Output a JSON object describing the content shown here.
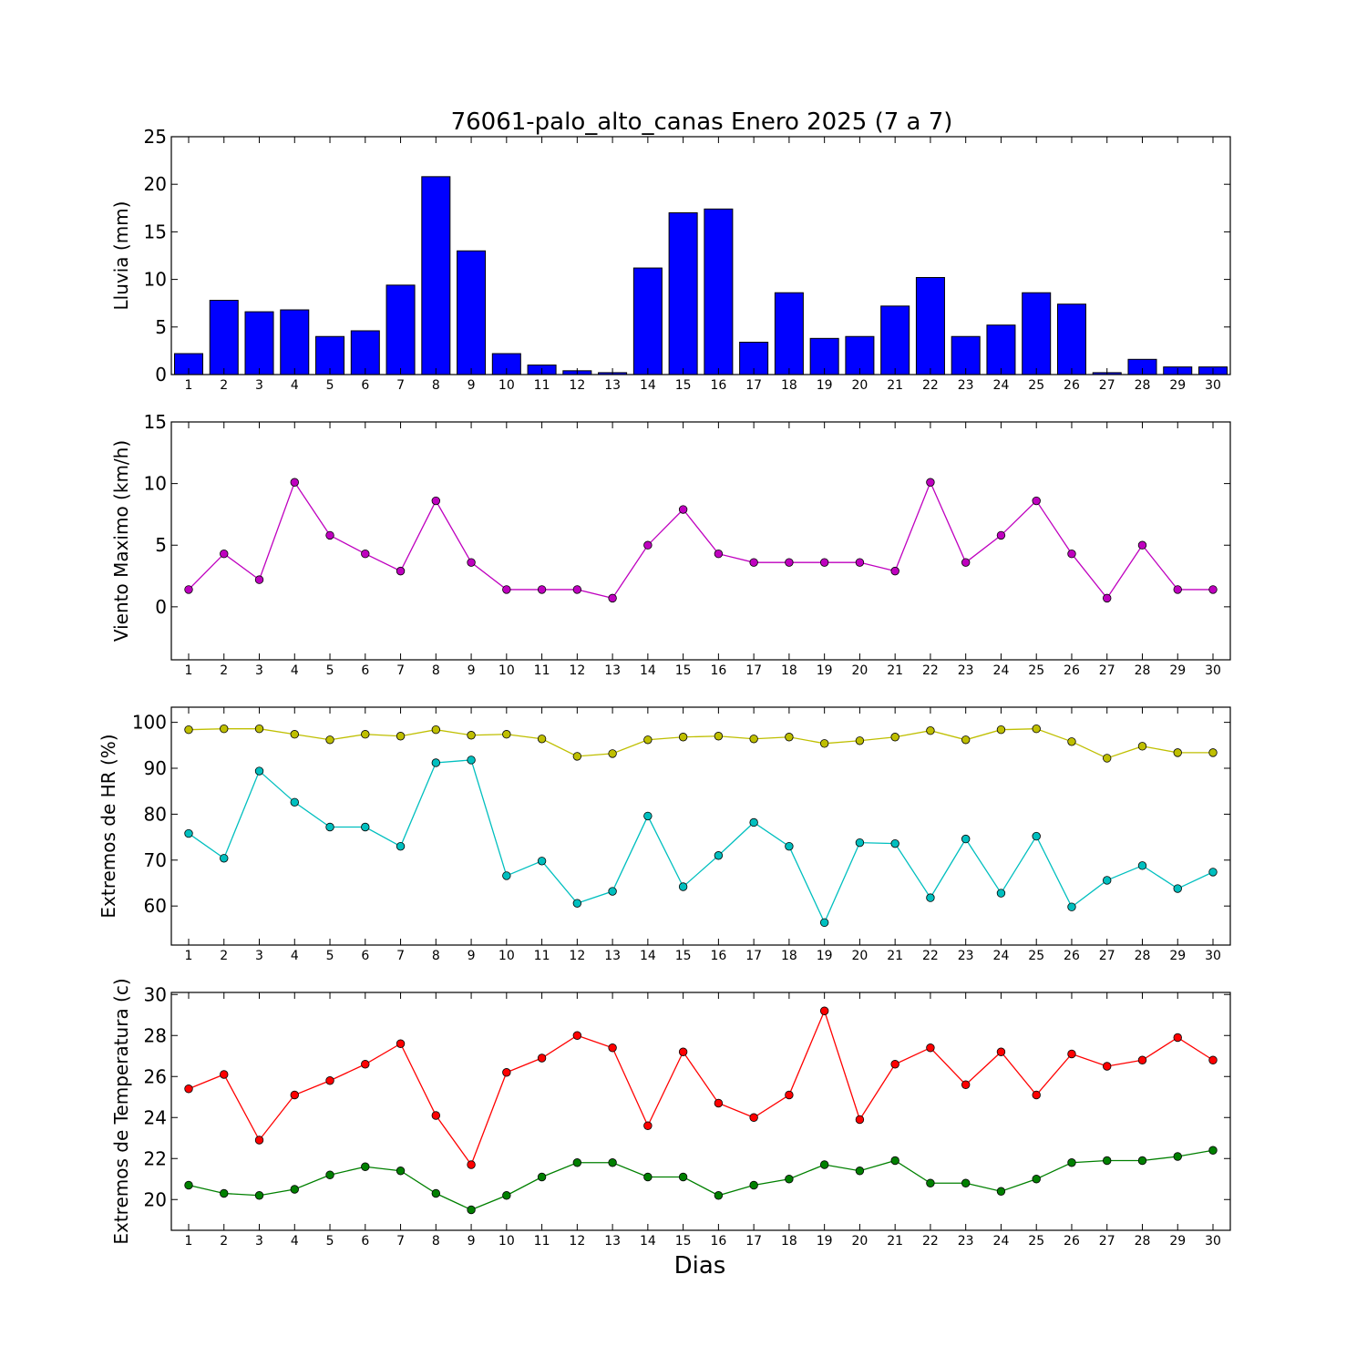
{
  "title": "76061-palo_alto_canas Enero 2025  (7 a 7)",
  "xlabel": "Dias",
  "chart_data": [
    {
      "type": "bar",
      "ylabel": "Lluvia (mm)",
      "ylim": [
        0,
        25
      ],
      "yticks": [
        0,
        5,
        10,
        15,
        20,
        25
      ],
      "categories": [
        1,
        2,
        3,
        4,
        5,
        6,
        7,
        8,
        9,
        10,
        11,
        12,
        13,
        14,
        15,
        16,
        17,
        18,
        19,
        20,
        21,
        22,
        23,
        24,
        25,
        26,
        27,
        28,
        29,
        30
      ],
      "series": [
        {
          "color": "#0000ff",
          "values": [
            2.2,
            7.8,
            6.6,
            6.8,
            4.0,
            4.6,
            9.4,
            20.8,
            13.0,
            2.2,
            1.0,
            0.4,
            0.2,
            11.2,
            17.0,
            17.4,
            3.4,
            8.6,
            3.8,
            4.0,
            7.2,
            10.2,
            4.0,
            5.2,
            8.6,
            7.4,
            0.2,
            1.6,
            0.8,
            0.8
          ]
        }
      ]
    },
    {
      "type": "line",
      "ylabel": "Viento Maximo (km/h)",
      "ylim": [
        -4.3,
        15
      ],
      "yticks": [
        0,
        5,
        10,
        15
      ],
      "categories": [
        1,
        2,
        3,
        4,
        5,
        6,
        7,
        8,
        9,
        10,
        11,
        12,
        13,
        14,
        15,
        16,
        17,
        18,
        19,
        20,
        21,
        22,
        23,
        24,
        25,
        26,
        27,
        28,
        29,
        30
      ],
      "series": [
        {
          "color": "#bf00bf",
          "values": [
            1.4,
            4.3,
            2.2,
            10.1,
            5.8,
            4.3,
            2.9,
            8.6,
            3.6,
            1.4,
            1.4,
            1.4,
            0.7,
            5.0,
            7.9,
            4.3,
            3.6,
            3.6,
            3.6,
            3.6,
            2.9,
            10.1,
            3.6,
            5.8,
            8.6,
            4.3,
            0.7,
            5.0,
            1.4,
            1.4
          ]
        }
      ]
    },
    {
      "type": "line",
      "ylabel": "Extremos de HR (%)",
      "ylim": [
        51.5,
        103.3
      ],
      "yticks": [
        60,
        70,
        80,
        90,
        100
      ],
      "categories": [
        1,
        2,
        3,
        4,
        5,
        6,
        7,
        8,
        9,
        10,
        11,
        12,
        13,
        14,
        15,
        16,
        17,
        18,
        19,
        20,
        21,
        22,
        23,
        24,
        25,
        26,
        27,
        28,
        29,
        30
      ],
      "series": [
        {
          "color": "#bfbf00",
          "values": [
            98.4,
            98.6,
            98.6,
            97.4,
            96.2,
            97.4,
            97.0,
            98.4,
            97.2,
            97.4,
            96.4,
            92.6,
            93.2,
            96.2,
            96.8,
            97.0,
            96.4,
            96.8,
            95.4,
            96.0,
            96.8,
            98.2,
            96.2,
            98.4,
            98.6,
            95.8,
            92.2,
            94.8,
            93.4,
            93.4
          ]
        },
        {
          "color": "#00bfbf",
          "values": [
            75.8,
            70.4,
            89.4,
            82.6,
            77.2,
            77.2,
            73.0,
            91.2,
            91.8,
            66.6,
            69.8,
            60.6,
            63.2,
            79.6,
            64.2,
            71.0,
            78.2,
            73.0,
            56.4,
            73.8,
            73.6,
            61.8,
            74.6,
            62.8,
            75.2,
            59.8,
            65.6,
            68.8,
            63.8,
            67.4
          ]
        }
      ]
    },
    {
      "type": "line",
      "ylabel": "Extremos de Temperatura (c)",
      "ylim": [
        18.5,
        30.1
      ],
      "yticks": [
        20,
        22,
        24,
        26,
        28,
        30
      ],
      "categories": [
        1,
        2,
        3,
        4,
        5,
        6,
        7,
        8,
        9,
        10,
        11,
        12,
        13,
        14,
        15,
        16,
        17,
        18,
        19,
        20,
        21,
        22,
        23,
        24,
        25,
        26,
        27,
        28,
        29,
        30
      ],
      "series": [
        {
          "color": "#ff0000",
          "values": [
            25.4,
            26.1,
            22.9,
            25.1,
            25.8,
            26.6,
            27.6,
            24.1,
            21.7,
            26.2,
            26.9,
            28.0,
            27.4,
            23.6,
            27.2,
            24.7,
            24.0,
            25.1,
            29.2,
            23.9,
            26.6,
            27.4,
            25.6,
            27.2,
            25.1,
            27.1,
            26.5,
            26.8,
            27.9,
            26.8
          ]
        },
        {
          "color": "#008000",
          "values": [
            20.7,
            20.3,
            20.2,
            20.5,
            21.2,
            21.6,
            21.4,
            20.3,
            19.5,
            20.2,
            21.1,
            21.8,
            21.8,
            21.1,
            21.1,
            20.2,
            20.7,
            21.0,
            21.7,
            21.4,
            21.9,
            20.8,
            20.8,
            20.4,
            21.0,
            21.8,
            21.9,
            21.9,
            22.1,
            22.4
          ]
        }
      ]
    }
  ]
}
